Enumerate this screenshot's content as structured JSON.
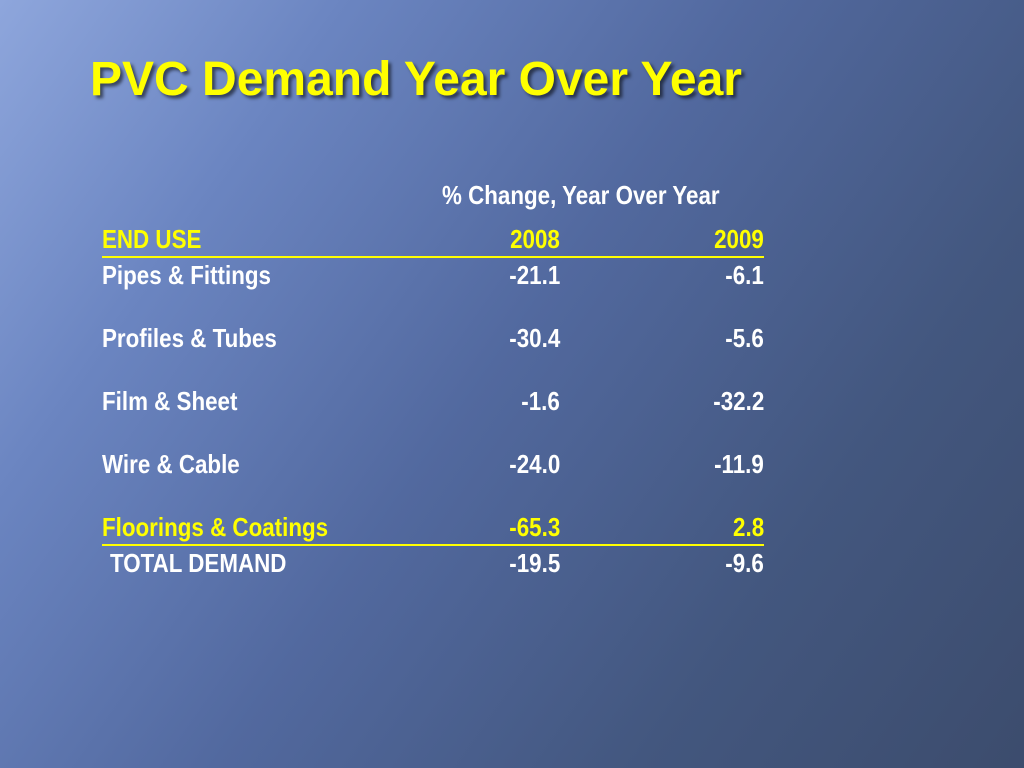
{
  "slide": {
    "title": "PVC Demand Year Over Year",
    "caption": "% Change, Year Over Year"
  },
  "table": {
    "header": {
      "label": "END USE",
      "col_2008": "2008",
      "col_2009": "2009"
    },
    "rows": [
      {
        "label": "Pipes & Fittings",
        "v2008": "-21.1",
        "v2009": "-6.1"
      },
      {
        "label": "Profiles & Tubes",
        "v2008": "-30.4",
        "v2009": "-5.6"
      },
      {
        "label": "Film & Sheet",
        "v2008": "-1.6",
        "v2009": "-32.2"
      },
      {
        "label": "Wire & Cable",
        "v2008": "-24.0",
        "v2009": "-11.9"
      },
      {
        "label": "Floorings & Coatings",
        "v2008": "-65.3",
        "v2009": "2.8"
      }
    ],
    "total": {
      "label": "TOTAL DEMAND",
      "v2008": "-19.5",
      "v2009": "-9.6"
    }
  },
  "colors": {
    "title": "#ffff00",
    "header": "#ffff00",
    "body_text": "#ffffff",
    "background_light": "#8ea6dc",
    "background_dark": "#3c4c6d"
  }
}
